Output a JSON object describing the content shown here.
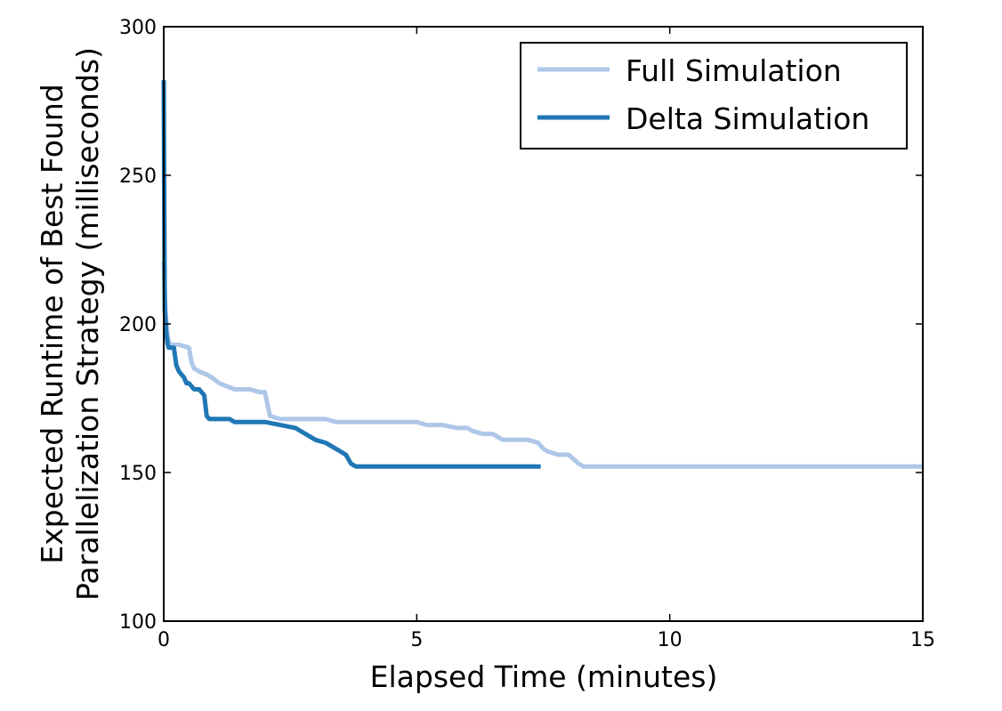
{
  "chart_data": {
    "type": "line",
    "xlabel": "Elapsed Time (minutes)",
    "ylabel_lines": [
      "Expected Runtime of Best Found",
      "Parallelization Strategy (milliseconds)"
    ],
    "xlim": [
      0,
      15
    ],
    "ylim": [
      100,
      300
    ],
    "xticks": [
      0,
      5,
      10,
      15
    ],
    "yticks": [
      100,
      150,
      200,
      250,
      300
    ],
    "grid": false,
    "legend": {
      "position": "top-right"
    },
    "series": [
      {
        "name": "Full Simulation",
        "color": "#aec7e8",
        "x": [
          0,
          0.02,
          0.05,
          0.08,
          0.12,
          0.18,
          0.3,
          0.5,
          0.55,
          0.6,
          0.7,
          0.85,
          0.95,
          1.1,
          1.4,
          1.7,
          1.9,
          2.0,
          2.1,
          2.3,
          2.8,
          3.2,
          3.4,
          3.5,
          5.0,
          5.2,
          5.5,
          5.8,
          6.0,
          6.1,
          6.3,
          6.5,
          6.7,
          7.2,
          7.4,
          7.5,
          7.6,
          7.8,
          8.0,
          8.2,
          8.3,
          8.5,
          15
        ],
        "y": [
          221,
          211,
          201,
          196,
          193,
          193,
          193,
          192,
          187,
          185,
          184,
          183,
          182,
          180,
          178,
          178,
          177,
          177,
          169,
          168,
          168,
          168,
          167,
          167,
          167,
          166,
          166,
          165,
          165,
          164,
          163,
          163,
          161,
          161,
          160,
          158,
          157,
          156,
          156,
          153,
          152,
          152,
          152
        ]
      },
      {
        "name": "Delta Simulation",
        "color": "#1f77b4",
        "x": [
          0,
          0.02,
          0.05,
          0.08,
          0.1,
          0.12,
          0.2,
          0.25,
          0.3,
          0.35,
          0.4,
          0.45,
          0.5,
          0.55,
          0.6,
          0.7,
          0.8,
          0.85,
          0.9,
          1.3,
          1.4,
          1.6,
          2.0,
          2.3,
          2.6,
          2.8,
          3.0,
          3.2,
          3.3,
          3.5,
          3.6,
          3.7,
          3.8,
          4.0,
          7.45
        ],
        "y": [
          282,
          205,
          197,
          193,
          192,
          192,
          192,
          186,
          184,
          183,
          182,
          180,
          180,
          179,
          178,
          178,
          176,
          169,
          168,
          168,
          167,
          167,
          167,
          166,
          165,
          163,
          161,
          160,
          159,
          157,
          156,
          153,
          152,
          152,
          152
        ]
      }
    ]
  }
}
